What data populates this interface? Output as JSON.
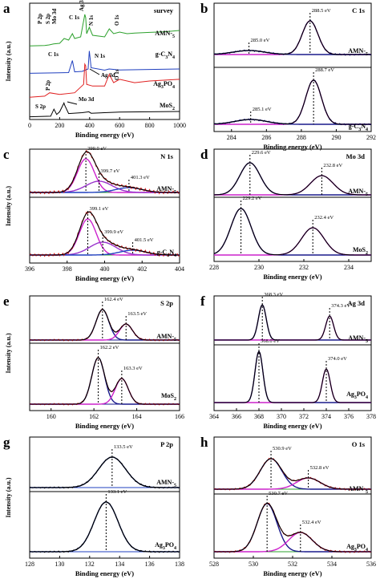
{
  "colors": {
    "black": "#000000",
    "green": "#2ca02c",
    "blue": "#1f3fbf",
    "red": "#e02020",
    "navy": "#1a1a8c",
    "magenta": "#cc22cc",
    "purple": "#9933cc"
  },
  "chart_data": [
    {
      "panel": "a",
      "type": "line",
      "title": "survey",
      "xlabel": "Binding energy (eV)",
      "ylabel": "Intensity (a.u.)",
      "xlim": [
        0,
        1000
      ],
      "xticks": [
        0,
        200,
        400,
        600,
        800,
        1000
      ],
      "series": [
        {
          "name": "AMN-5",
          "color": "#2ca02c",
          "x": [
            0,
            100,
            130,
            160,
            200,
            230,
            260,
            285,
            300,
            340,
            368,
            374,
            380,
            398,
            420,
            500,
            531,
            560,
            600,
            650,
            700,
            800,
            900,
            1000
          ],
          "y": [
            0.02,
            0.03,
            0.05,
            0.08,
            0.1,
            0.25,
            0.2,
            0.4,
            0.25,
            0.3,
            1.0,
            0.9,
            0.4,
            0.6,
            0.35,
            0.3,
            0.55,
            0.4,
            0.45,
            0.4,
            0.42,
            0.44,
            0.46,
            0.5
          ]
        },
        {
          "name": "g-C3N4",
          "color": "#1f3fbf",
          "x": [
            0,
            200,
            260,
            285,
            300,
            350,
            390,
            398,
            410,
            500,
            530,
            600,
            800,
            1000
          ],
          "y": [
            0.02,
            0.04,
            0.05,
            0.55,
            0.08,
            0.1,
            0.2,
            0.95,
            0.25,
            0.15,
            0.2,
            0.16,
            0.18,
            0.2
          ]
        },
        {
          "name": "Ag3PO4",
          "color": "#e02020",
          "x": [
            0,
            100,
            133,
            200,
            300,
            360,
            368,
            374,
            380,
            420,
            500,
            531,
            560,
            600,
            700,
            800,
            1000
          ],
          "y": [
            0.02,
            0.05,
            0.15,
            0.1,
            0.15,
            0.4,
            1.0,
            0.95,
            0.4,
            0.35,
            0.35,
            0.7,
            0.45,
            0.55,
            0.45,
            0.5,
            0.55
          ]
        },
        {
          "name": "MoS2",
          "color": "#000000",
          "x": [
            0,
            140,
            162,
            180,
            200,
            229,
            232,
            260,
            350,
            395,
            410,
            500,
            600,
            800,
            1000
          ],
          "y": [
            0.02,
            0.05,
            0.45,
            0.15,
            0.3,
            0.8,
            0.7,
            0.2,
            0.25,
            0.3,
            0.22,
            0.25,
            0.28,
            0.3,
            0.32
          ]
        }
      ],
      "annotations": [
        "P 2p",
        "S 2p",
        "Mo 3d",
        "C 1s",
        "Ag 3d",
        "N 1s",
        "O 1s",
        "Ag 3d",
        "O 1s",
        "C 1s",
        "N 1s",
        "P 2p",
        "S 2p",
        "Mo 3d"
      ],
      "labels": [
        "AMN-5",
        "g-C3N4",
        "Ag3PO4",
        "MoS2"
      ]
    },
    {
      "panel": "b",
      "type": "line",
      "title": "C 1s",
      "xlabel": "Binding energy (eV)",
      "ylabel": "",
      "xlim": [
        283,
        292
      ],
      "xticks": [
        284,
        286,
        288,
        290,
        292
      ],
      "series": [
        {
          "name": "AMN-5",
          "peaks": [
            {
              "center": 288.5,
              "label": "288.5 eV"
            },
            {
              "center": 285.0,
              "label": "285.0 eV"
            }
          ]
        },
        {
          "name": "g-C3N4",
          "peaks": [
            {
              "center": 288.7,
              "label": "288.7 eV"
            },
            {
              "center": 285.1,
              "label": "285.1 eV"
            }
          ]
        }
      ]
    },
    {
      "panel": "c",
      "type": "line",
      "title": "N 1s",
      "xlabel": "Binding energy (eV)",
      "ylabel": "Intensity (a.u.)",
      "xlim": [
        396,
        404
      ],
      "xticks": [
        396,
        398,
        400,
        402,
        404
      ],
      "series": [
        {
          "name": "AMN-5",
          "peaks": [
            {
              "center": 399.0,
              "label": "399.0 eV"
            },
            {
              "center": 399.7,
              "label": "399.7 eV"
            },
            {
              "center": 401.3,
              "label": "401.3 eV"
            }
          ]
        },
        {
          "name": "g-C3N4",
          "peaks": [
            {
              "center": 399.1,
              "label": "399.1 eV"
            },
            {
              "center": 399.9,
              "label": "399.9 eV"
            },
            {
              "center": 401.5,
              "label": "401.5 eV"
            }
          ]
        }
      ]
    },
    {
      "panel": "d",
      "type": "line",
      "title": "Mo 3d",
      "xlabel": "Binding energy (eV)",
      "ylabel": "",
      "xlim": [
        228,
        235
      ],
      "xticks": [
        228,
        230,
        232,
        234
      ],
      "series": [
        {
          "name": "AMN-5",
          "peaks": [
            {
              "center": 229.6,
              "label": "229.6 eV"
            },
            {
              "center": 232.8,
              "label": "232.8 eV"
            }
          ]
        },
        {
          "name": "MoS2",
          "peaks": [
            {
              "center": 229.2,
              "label": "229.2 eV"
            },
            {
              "center": 232.4,
              "label": "232.4 eV"
            }
          ]
        }
      ]
    },
    {
      "panel": "e",
      "type": "line",
      "title": "S 2p",
      "xlabel": "Binding energy (eV)",
      "ylabel": "Intensity (a.u.)",
      "xlim": [
        159,
        166
      ],
      "xticks": [
        160,
        162,
        164,
        166
      ],
      "series": [
        {
          "name": "AMN-5",
          "peaks": [
            {
              "center": 162.4,
              "label": "162.4 eV"
            },
            {
              "center": 163.5,
              "label": "163.5 eV"
            }
          ]
        },
        {
          "name": "MoS2",
          "peaks": [
            {
              "center": 162.2,
              "label": "162.2 eV"
            },
            {
              "center": 163.3,
              "label": "163.3 eV"
            }
          ]
        }
      ]
    },
    {
      "panel": "f",
      "type": "line",
      "title": "Ag 3d",
      "xlabel": "Binding energy (eV)",
      "ylabel": "",
      "xlim": [
        364,
        378
      ],
      "xticks": [
        364,
        366,
        368,
        370,
        372,
        374,
        376,
        378
      ],
      "series": [
        {
          "name": "AMN-5",
          "peaks": [
            {
              "center": 368.3,
              "label": "368.3 eV"
            },
            {
              "center": 374.3,
              "label": "374.3 eV"
            }
          ]
        },
        {
          "name": "Ag3PO4",
          "peaks": [
            {
              "center": 368.0,
              "label": "368.0 eV"
            },
            {
              "center": 374.0,
              "label": "374.0 eV"
            }
          ]
        }
      ]
    },
    {
      "panel": "g",
      "type": "line",
      "title": "P 2p",
      "xlabel": "Binding energy (eV)",
      "ylabel": "Intensity (a.u.)",
      "xlim": [
        128,
        138
      ],
      "xticks": [
        128,
        130,
        132,
        134,
        136,
        138
      ],
      "series": [
        {
          "name": "AMN-5",
          "peaks": [
            {
              "center": 133.5,
              "label": "133.5 eV"
            }
          ]
        },
        {
          "name": "Ag3PO4",
          "peaks": [
            {
              "center": 133.1,
              "label": "133.1 eV"
            }
          ]
        }
      ]
    },
    {
      "panel": "h",
      "type": "line",
      "title": "O 1s",
      "xlabel": "Binding energy (eV)",
      "ylabel": "",
      "xlim": [
        528,
        536
      ],
      "xticks": [
        528,
        530,
        532,
        534,
        536
      ],
      "series": [
        {
          "name": "AMN-5",
          "peaks": [
            {
              "center": 530.9,
              "label": "530.9 eV"
            },
            {
              "center": 532.8,
              "label": "532.8 eV"
            }
          ]
        },
        {
          "name": "Ag3PO4",
          "peaks": [
            {
              "center": 530.7,
              "label": "530.7 eV"
            },
            {
              "center": 532.4,
              "label": "532.4 eV"
            }
          ]
        }
      ]
    }
  ]
}
